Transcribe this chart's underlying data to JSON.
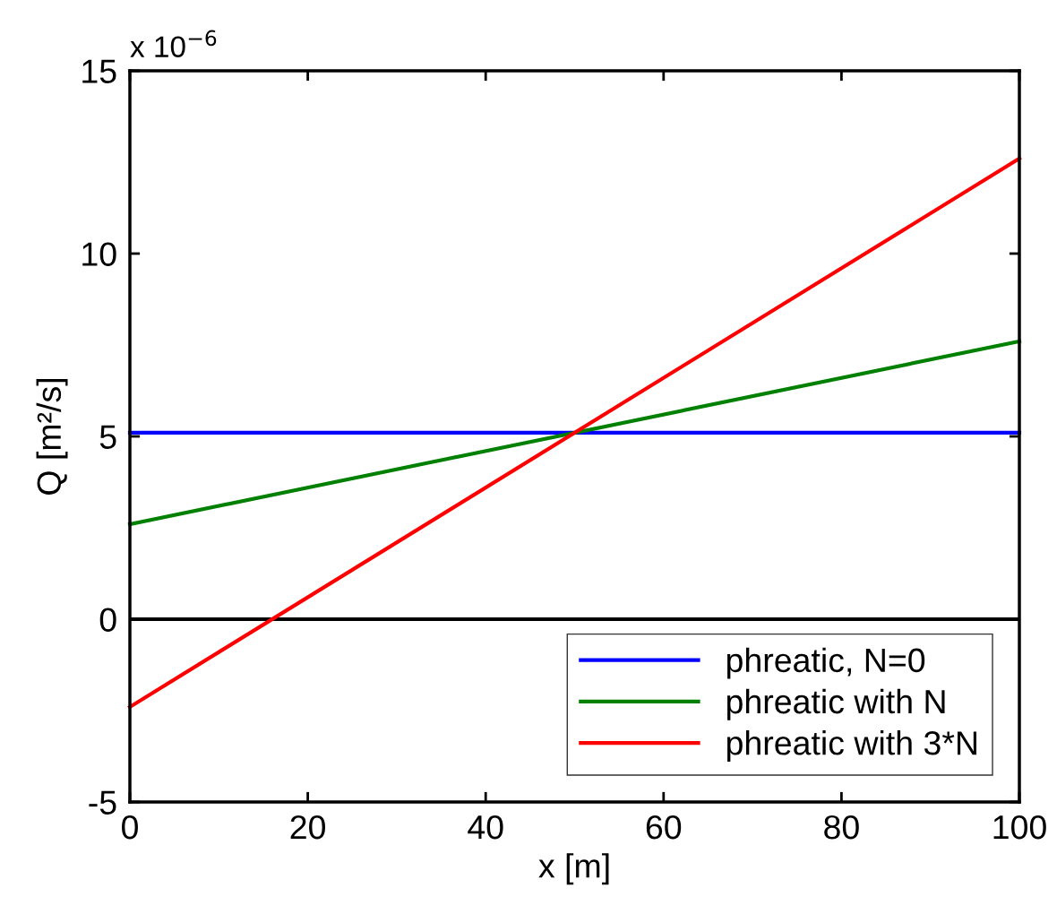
{
  "chart_data": {
    "type": "line",
    "xlabel": "x [m]",
    "ylabel": "Q [m²/s]",
    "annotations": [
      "x 10$^{−6}$"
    ],
    "series": [
      {
        "name": "phreatic, N=0",
        "color": "#0000ff",
        "values": [
          5.1,
          5.1
        ]
      },
      {
        "name": "phreatic with N",
        "color": "#008000",
        "values": [
          2.6,
          7.6
        ]
      },
      {
        "name": "phreatic with 3*N",
        "color": "#ff0000",
        "values": [
          -2.4,
          12.6
        ]
      }
    ],
    "x": [
      0,
      100
    ],
    "ref_lines": [
      {
        "axis": "y",
        "value": 0,
        "color": "#000000"
      }
    ],
    "xlim": [
      0,
      100
    ],
    "xticks": [
      0,
      20,
      40,
      60,
      80,
      100
    ],
    "ylim": [
      -5,
      15
    ],
    "yticks": [
      -5,
      0,
      5,
      10,
      15
    ],
    "grid": false,
    "legend": "bottom right",
    "marker": "none",
    "line_style": "solid"
  }
}
